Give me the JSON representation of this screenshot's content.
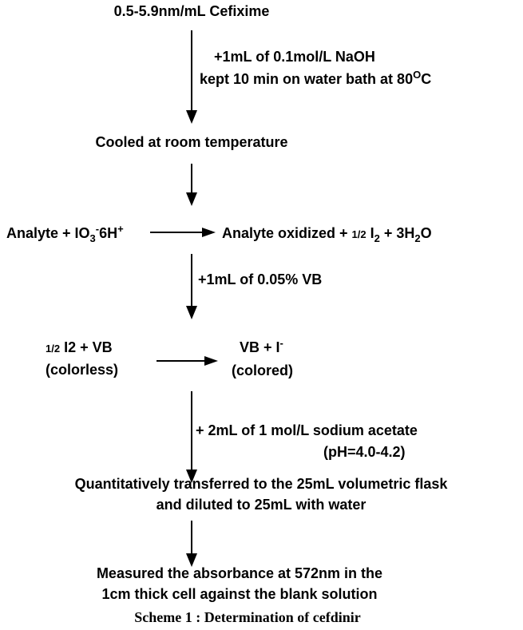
{
  "labels": [
    {
      "parts": [
        {
          "t": "0.5-5.9nm/mL Cefixime"
        }
      ]
    },
    {
      "parts": [
        {
          "t": "+1mL of 0.1mol/L NaOH"
        }
      ]
    },
    {
      "parts": [
        {
          "t": "kept 10 min on water bath at 80"
        },
        {
          "t": "O",
          "s": "sup"
        },
        {
          "t": "C"
        }
      ]
    },
    {
      "parts": [
        {
          "t": "Cooled at room temperature"
        }
      ]
    },
    {
      "parts": [
        {
          "t": "Analyte + IO"
        },
        {
          "t": "3",
          "s": "sub"
        },
        {
          "t": "-",
          "s": "sup"
        },
        {
          "t": "6H"
        },
        {
          "t": "+",
          "s": "sup"
        }
      ]
    },
    {
      "parts": [
        {
          "t": "Analyte oxidized + "
        },
        {
          "t": "1/2",
          "s": "small"
        },
        {
          "t": " I"
        },
        {
          "t": "2",
          "s": "sub"
        },
        {
          "t": " + 3H"
        },
        {
          "t": "2",
          "s": "sub"
        },
        {
          "t": "O"
        }
      ]
    },
    {
      "parts": [
        {
          "t": "+1mL of 0.05% VB"
        }
      ]
    },
    {
      "parts": [
        {
          "t": "1/2",
          "s": "small"
        },
        {
          "t": " I2 + VB"
        }
      ]
    },
    {
      "parts": [
        {
          "t": "(colorless)"
        }
      ]
    },
    {
      "parts": [
        {
          "t": "VB + I"
        },
        {
          "t": "-",
          "s": "sup"
        }
      ]
    },
    {
      "parts": [
        {
          "t": "(colored)"
        }
      ]
    },
    {
      "parts": [
        {
          "t": "+ 2mL of 1 mol/L sodium acetate"
        }
      ]
    },
    {
      "parts": [
        {
          "t": "(pH=4.0-4.2)"
        }
      ]
    },
    {
      "parts": [
        {
          "t": "Quantitatively transferred to the 25mL volumetric flask"
        }
      ]
    },
    {
      "parts": [
        {
          "t": "and diluted to 25mL with water"
        }
      ]
    },
    {
      "parts": [
        {
          "t": "Measured the absorbance at 572nm in the"
        }
      ]
    },
    {
      "parts": [
        {
          "t": "1cm thick cell against the blank solution"
        }
      ]
    }
  ],
  "caption": "Scheme 1 : Determination of cefdinir"
}
